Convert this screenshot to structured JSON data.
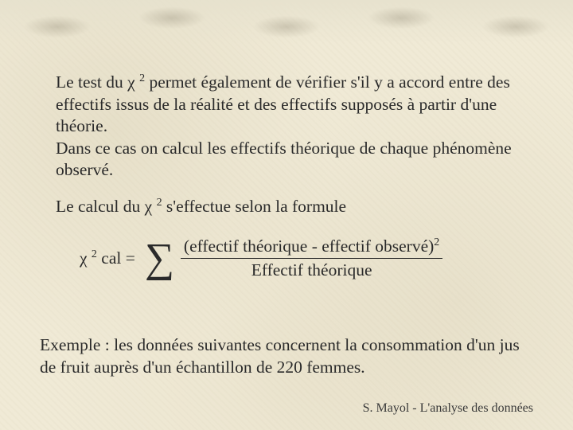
{
  "text": {
    "para1_a": "Le test du ",
    "chi": "χ",
    "sup2": "2",
    "para1_b": " permet également de vérifier s'il y a accord entre des effectifs issus de la réalité et des effectifs supposés à partir d'une théorie.",
    "para1_c": "Dans ce cas on calcul les effectifs théorique de chaque phénomène observé.",
    "para2_a": "Le calcul du ",
    "para2_b": " s'effectue selon la formule",
    "formula_cal": "  cal = ",
    "sigma": "∑",
    "numerator_a": "(effectif théorique - effectif observé)",
    "denominator": "Effectif théorique",
    "example": "Exemple : les données suivantes concernent la consommation d'un jus de fruit auprès d'un échantillon de 220 femmes.",
    "footer": "S. Mayol - L'analyse des données"
  }
}
